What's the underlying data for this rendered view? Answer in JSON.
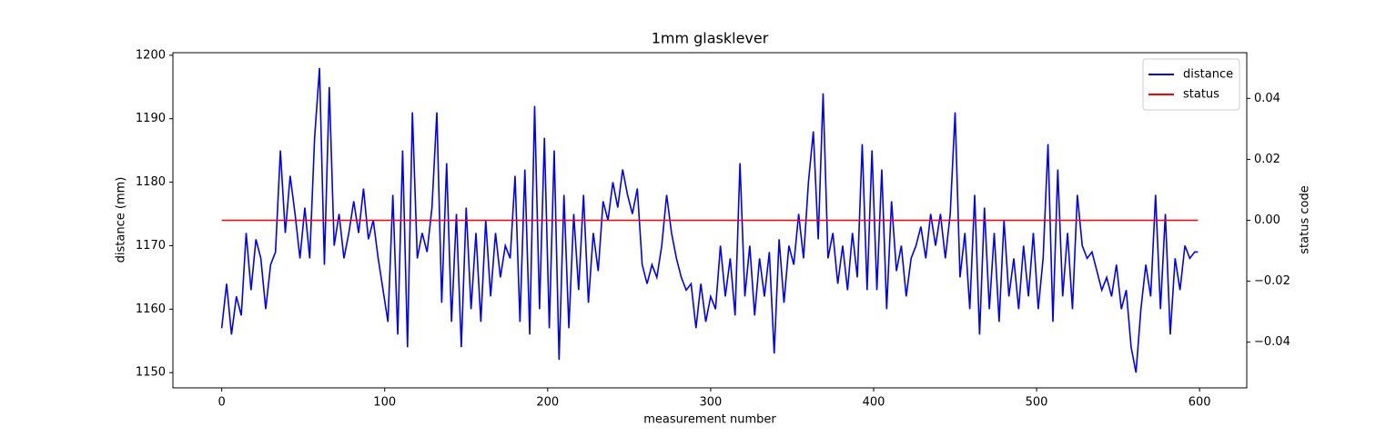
{
  "chart_data": {
    "type": "line",
    "title": "1mm glasklever",
    "xlabel": "measurement number",
    "ylabel": "distance (mm)",
    "y2label": "status code",
    "xlim": [
      -29.95,
      628.95
    ],
    "xticks": [
      0,
      100,
      200,
      300,
      400,
      500,
      600
    ],
    "ylim": [
      1147.6,
      1200.4
    ],
    "yticks": [
      1150,
      1160,
      1170,
      1180,
      1190,
      1200
    ],
    "y2lim": [
      -0.055,
      0.055
    ],
    "y2ticks": [
      {
        "value": -0.04,
        "label": "−0.04"
      },
      {
        "value": -0.02,
        "label": "−0.02"
      },
      {
        "value": 0,
        "label": "0.00"
      },
      {
        "value": 0.02,
        "label": "0.02"
      },
      {
        "value": 0.04,
        "label": "0.04"
      }
    ],
    "legend": "upper right",
    "series": [
      {
        "name": "distance",
        "color": "#0000ff",
        "axis": "y",
        "x": [
          0,
          3,
          6,
          9,
          12,
          15,
          18,
          21,
          24,
          27,
          30,
          33,
          36,
          39,
          42,
          45,
          48,
          51,
          54,
          57,
          60,
          63,
          66,
          69,
          72,
          75,
          78,
          81,
          84,
          87,
          90,
          93,
          96,
          99,
          102,
          105,
          108,
          111,
          114,
          117,
          120,
          123,
          126,
          129,
          132,
          135,
          138,
          141,
          144,
          147,
          150,
          153,
          156,
          159,
          162,
          165,
          168,
          171,
          174,
          177,
          180,
          183,
          186,
          189,
          192,
          195,
          198,
          201,
          204,
          207,
          210,
          213,
          216,
          219,
          222,
          225,
          228,
          231,
          234,
          237,
          240,
          243,
          246,
          249,
          252,
          255,
          258,
          261,
          264,
          267,
          270,
          273,
          276,
          279,
          282,
          285,
          288,
          291,
          294,
          297,
          300,
          303,
          306,
          309,
          312,
          315,
          318,
          321,
          324,
          327,
          330,
          333,
          336,
          339,
          342,
          345,
          348,
          351,
          354,
          357,
          360,
          363,
          366,
          369,
          372,
          375,
          378,
          381,
          384,
          387,
          390,
          393,
          396,
          399,
          402,
          405,
          408,
          411,
          414,
          417,
          420,
          423,
          426,
          429,
          432,
          435,
          438,
          441,
          444,
          447,
          450,
          453,
          456,
          459,
          462,
          465,
          468,
          471,
          474,
          477,
          480,
          483,
          486,
          489,
          492,
          495,
          498,
          501,
          504,
          507,
          510,
          513,
          516,
          519,
          522,
          525,
          528,
          531,
          534,
          537,
          540,
          543,
          546,
          549,
          552,
          555,
          558,
          561,
          564,
          567,
          570,
          573,
          576,
          579,
          582,
          585,
          588,
          591,
          594,
          597,
          599
        ],
        "values": [
          1157,
          1164,
          1156,
          1162,
          1159,
          1172,
          1163,
          1171,
          1168,
          1160,
          1167,
          1169,
          1185,
          1172,
          1181,
          1175,
          1168,
          1176,
          1168,
          1187,
          1198,
          1167,
          1195,
          1170,
          1175,
          1168,
          1172,
          1177,
          1172,
          1179,
          1171,
          1174,
          1168,
          1163,
          1158,
          1178,
          1156,
          1185,
          1154,
          1191,
          1168,
          1172,
          1169,
          1176,
          1191,
          1161,
          1183,
          1158,
          1175,
          1154,
          1176,
          1160,
          1172,
          1158,
          1174,
          1162,
          1172,
          1165,
          1170,
          1168,
          1181,
          1158,
          1182,
          1156,
          1192,
          1160,
          1187,
          1157,
          1185,
          1152,
          1178,
          1157,
          1175,
          1163,
          1178,
          1161,
          1172,
          1166,
          1177,
          1174,
          1180,
          1176,
          1182,
          1178,
          1175,
          1179,
          1167,
          1164,
          1167,
          1165,
          1170,
          1178,
          1172,
          1168,
          1165,
          1163,
          1164,
          1157,
          1164,
          1158,
          1162,
          1160,
          1170,
          1162,
          1168,
          1159,
          1183,
          1162,
          1170,
          1159,
          1168,
          1162,
          1169,
          1153,
          1171,
          1161,
          1170,
          1167,
          1175,
          1168,
          1180,
          1188,
          1171,
          1194,
          1168,
          1172,
          1164,
          1170,
          1163,
          1172,
          1165,
          1186,
          1163,
          1185,
          1163,
          1182,
          1160,
          1177,
          1166,
          1170,
          1162,
          1168,
          1170,
          1173,
          1168,
          1175,
          1170,
          1175,
          1168,
          1175,
          1191,
          1165,
          1172,
          1160,
          1178,
          1156,
          1176,
          1160,
          1172,
          1158,
          1174,
          1162,
          1168,
          1160,
          1170,
          1162,
          1172,
          1160,
          1168,
          1186,
          1158,
          1182,
          1162,
          1172,
          1160,
          1178,
          1170,
          1168,
          1169,
          1166,
          1163,
          1165,
          1162,
          1167,
          1160,
          1163,
          1154,
          1150,
          1160,
          1167,
          1162,
          1178,
          1160,
          1175,
          1156,
          1168,
          1163,
          1170,
          1168,
          1169,
          1169
        ]
      },
      {
        "name": "status",
        "color": "#ff0000",
        "axis": "y2",
        "x": [
          0,
          599
        ],
        "values": [
          0,
          0
        ]
      }
    ]
  }
}
